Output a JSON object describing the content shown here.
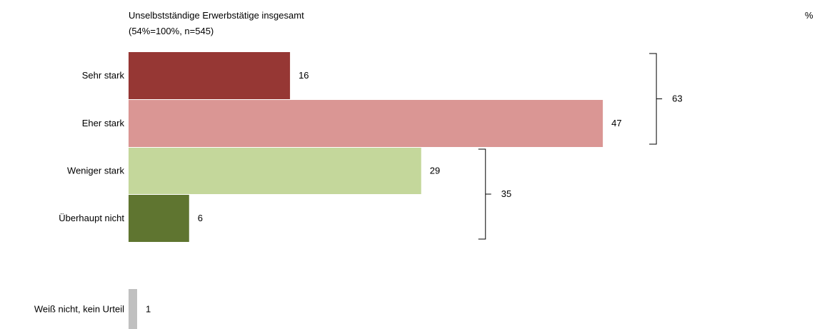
{
  "chart_data": {
    "type": "bar",
    "orientation": "horizontal",
    "title": "Unselbstständige Erwerbstätige insgesamt",
    "subtitle": "(54%=100%, n=545)",
    "unit": "%",
    "categories": [
      "Sehr stark",
      "Eher stark",
      "Weniger stark",
      "Überhaupt nicht",
      "Weiß nicht, kein Urteil"
    ],
    "values": [
      16,
      47,
      29,
      6,
      1
    ],
    "colors": [
      "#963734",
      "#da9694",
      "#c4d79b",
      "#5f7530",
      "#c0c0c0"
    ],
    "groups": [
      {
        "value": 63,
        "members": [
          "Sehr stark",
          "Eher stark"
        ]
      },
      {
        "value": 35,
        "members": [
          "Weniger stark",
          "Überhaupt nicht"
        ]
      }
    ],
    "xlim": [
      0,
      100
    ],
    "grid": false,
    "legend": "none"
  }
}
